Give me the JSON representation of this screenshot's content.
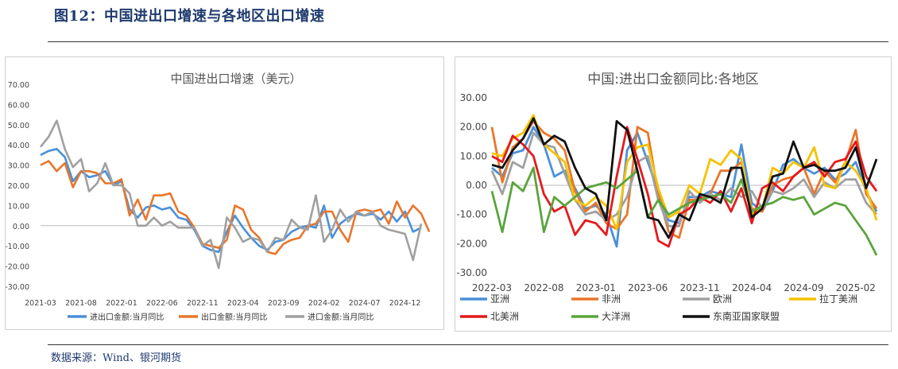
{
  "figure_title": "图12：中国进出口增速与各地区出口增速",
  "source_note": "数据来源：Wind、银河期货",
  "chart_data": [
    {
      "type": "line",
      "title": "中国进出口增速（美元）",
      "x_ticks": [
        "2021-03",
        "2021-08",
        "2022-01",
        "2022-06",
        "2022-11",
        "2023-04",
        "2023-09",
        "2024-02",
        "2024-07",
        "2024-12"
      ],
      "x_start": "2021-03",
      "ylim": [
        -30,
        70
      ],
      "y_ticks": [
        "70.00",
        "60.00",
        "50.00",
        "40.00",
        "30.00",
        "20.00",
        "10.00",
        "0.00",
        "-10.00",
        "-20.00",
        "-30.00"
      ],
      "legend_position": "bottom",
      "grid": false,
      "series": [
        {
          "name": "进出口金额:当月同比",
          "color": "#4a90d9",
          "values": [
            35,
            37,
            38,
            34,
            22,
            27,
            24,
            25,
            27,
            20,
            22,
            8,
            4,
            9,
            10,
            8,
            9,
            4,
            3,
            -2,
            -10,
            -12,
            -13,
            -3,
            5,
            -1,
            -6,
            -10,
            -12,
            -8,
            -7,
            -3,
            -1,
            0,
            -1,
            10,
            -6,
            1,
            4,
            6,
            5,
            6,
            3,
            7,
            2,
            7,
            -3,
            -1
          ]
        },
        {
          "name": "出口金额:当月同比",
          "color": "#e9762b",
          "values": [
            30,
            32,
            27,
            31,
            19,
            27,
            27,
            26,
            21,
            21,
            23,
            5,
            13,
            3,
            15,
            15,
            16,
            7,
            5,
            -1,
            -9,
            -10,
            -11,
            -7,
            10,
            8,
            -2,
            -6,
            -13,
            -14,
            -9,
            -7,
            -6,
            0,
            1,
            7,
            7,
            -2,
            -8,
            7,
            8,
            7,
            8,
            1,
            12,
            4,
            10,
            6,
            -3
          ]
        },
        {
          "name": "进口金额:当月同比",
          "color": "#a0a0a0",
          "values": [
            39,
            44,
            52,
            38,
            29,
            33,
            17,
            21,
            31,
            20,
            20,
            16,
            0,
            0,
            4,
            0,
            2,
            -1,
            -1,
            -1,
            -10,
            -7,
            -21,
            4,
            -1,
            -8,
            -6,
            -7,
            -13,
            -6,
            -7,
            3,
            -1,
            -2,
            15,
            -8,
            -2,
            8,
            2,
            7,
            5,
            7,
            0,
            -2,
            -3,
            -4,
            -17,
            1
          ]
        }
      ]
    },
    {
      "type": "line",
      "title": "中国:进出口金额同比:各地区",
      "x_ticks": [
        "2022-03",
        "2022-08",
        "2023-01",
        "2023-06",
        "2023-11",
        "2024-04",
        "2024-09",
        "2025-02"
      ],
      "x_start": "2022-03",
      "ylim": [
        -30,
        30
      ],
      "y_ticks": [
        "30.00",
        "20.00",
        "10.00",
        "0.00",
        "-10.00",
        "-20.00",
        "-30.00"
      ],
      "legend_position": "bottom",
      "grid": false,
      "series": [
        {
          "name": "亚洲",
          "color": "#4a90d9",
          "values": [
            6,
            3,
            11,
            12,
            20,
            14,
            3,
            5,
            -1,
            -8,
            -7,
            -10,
            -21,
            12,
            18,
            8,
            -2,
            -12,
            -13,
            -4,
            -4,
            -2,
            -3,
            -4,
            14,
            -6,
            -9,
            -2,
            7,
            9,
            6,
            4,
            6,
            2,
            4,
            8,
            -2,
            -9
          ]
        },
        {
          "name": "非洲",
          "color": "#e9762b",
          "values": [
            20,
            1,
            13,
            16,
            22,
            18,
            16,
            12,
            -2,
            -9,
            -6,
            -13,
            -15,
            -10,
            20,
            18,
            -3,
            -16,
            -18,
            -5,
            -5,
            -3,
            5,
            5,
            8,
            -8,
            -9,
            0,
            2,
            3,
            6,
            -3,
            5,
            1,
            8,
            19,
            -3,
            -8
          ]
        },
        {
          "name": "欧洲",
          "color": "#a0a0a0",
          "values": [
            5,
            -3,
            8,
            6,
            18,
            14,
            13,
            4,
            -5,
            -10,
            -9,
            -12,
            -10,
            -4,
            8,
            10,
            -5,
            -14,
            -14,
            -2,
            -6,
            -3,
            -5,
            -1,
            -4,
            -2,
            -8,
            -2,
            -3,
            -1,
            2,
            -4,
            1,
            -1,
            2,
            2,
            -6,
            -10
          ]
        },
        {
          "name": "拉丁美洲",
          "color": "#f5c200",
          "values": [
            11,
            10,
            16,
            18,
            24,
            14,
            11,
            8,
            -5,
            -7,
            -4,
            -7,
            -15,
            8,
            13,
            14,
            -1,
            -11,
            -9,
            0,
            -3,
            9,
            7,
            12,
            9,
            -10,
            -8,
            6,
            4,
            8,
            6,
            13,
            0,
            -1,
            8,
            5,
            -1,
            -12
          ]
        },
        {
          "name": "北美洲",
          "color": "#e41a1c",
          "values": [
            10,
            8,
            17,
            14,
            10,
            -3,
            -9,
            -7,
            -17,
            -12,
            -13,
            -17,
            3,
            20,
            9,
            -3,
            -19,
            -21,
            -10,
            -8,
            -4,
            -6,
            -2,
            -9,
            -1,
            -13,
            -1,
            1,
            -2,
            3,
            6,
            8,
            3,
            8,
            9,
            15,
            3,
            -2
          ]
        },
        {
          "name": "大洋洲",
          "color": "#5aa43c",
          "values": [
            -2,
            -16,
            1,
            -2,
            6,
            -16,
            -4,
            -7,
            -4,
            -1,
            0,
            1,
            -1,
            2,
            5,
            -11,
            -5,
            -10,
            -8,
            -6,
            -5,
            -4,
            -3,
            -6,
            2,
            -9,
            -7,
            -6,
            -4,
            -5,
            -4,
            -10,
            -8,
            -6,
            -7,
            -12,
            -17,
            -24
          ]
        },
        {
          "name": "东南亚国家联盟",
          "color": "#111111",
          "values": [
            7,
            6,
            12,
            16,
            23,
            14,
            17,
            15,
            6,
            -1,
            -3,
            -12,
            22,
            19,
            5,
            -11,
            -12,
            -18,
            -10,
            -12,
            -3,
            -4,
            -6,
            6,
            6,
            -11,
            -8,
            3,
            4,
            15,
            6,
            7,
            5,
            5,
            6,
            13,
            -1,
            9
          ]
        }
      ]
    }
  ]
}
